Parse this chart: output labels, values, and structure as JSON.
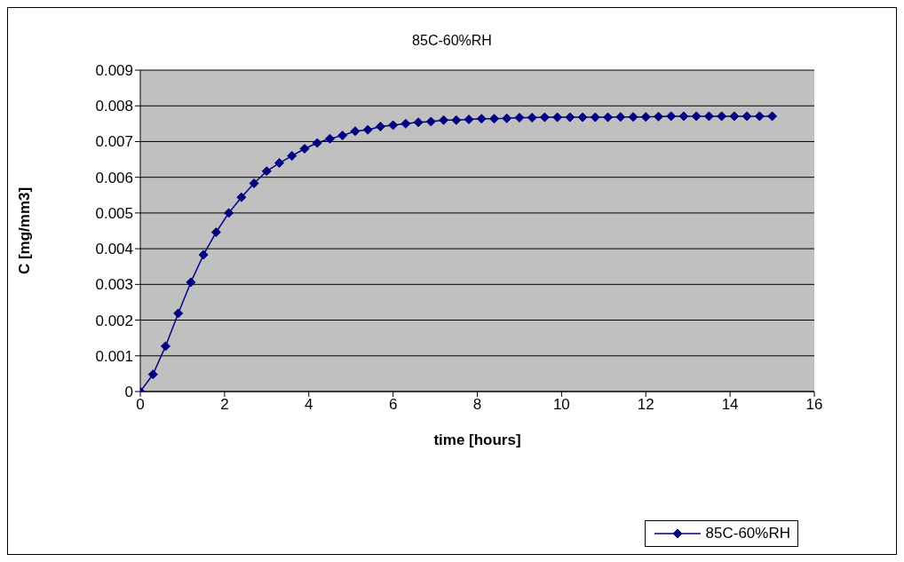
{
  "chart_data": {
    "type": "line",
    "title": "85C-60%RH",
    "xlabel": "time [hours]",
    "ylabel": "C [mg/mm3]",
    "x": [
      0,
      0.3,
      0.6,
      0.9,
      1.2,
      1.5,
      1.8,
      2.1,
      2.4,
      2.7,
      3,
      3.3,
      3.6,
      3.9,
      4.2,
      4.5,
      4.8,
      5.1,
      5.4,
      5.7,
      6,
      6.3,
      6.6,
      6.9,
      7.2,
      7.5,
      7.8,
      8.1,
      8.4,
      8.7,
      9,
      9.3,
      9.6,
      9.9,
      10.2,
      10.5,
      10.8,
      11.1,
      11.4,
      11.7,
      12,
      12.3,
      12.6,
      12.9,
      13.2,
      13.5,
      13.8,
      14.1,
      14.4,
      14.7,
      15
    ],
    "series": [
      {
        "name": "85C-60%RH",
        "color": "#000080",
        "values": [
          0,
          0.00048,
          0.00127,
          0.00219,
          0.00306,
          0.00383,
          0.00446,
          0.005,
          0.00544,
          0.00583,
          0.00617,
          0.0064,
          0.0066,
          0.0068,
          0.00696,
          0.00708,
          0.00717,
          0.00729,
          0.00733,
          0.00742,
          0.00746,
          0.0075,
          0.00754,
          0.00756,
          0.0076,
          0.0076,
          0.00762,
          0.00764,
          0.00764,
          0.00765,
          0.00767,
          0.00767,
          0.00768,
          0.00768,
          0.00768,
          0.00768,
          0.00768,
          0.00768,
          0.00769,
          0.00769,
          0.00769,
          0.0077,
          0.00771,
          0.00771,
          0.00771,
          0.00771,
          0.00771,
          0.00771,
          0.00771,
          0.00771,
          0.00771
        ]
      }
    ],
    "xlim": [
      0,
      16
    ],
    "xticks": [
      0,
      2,
      4,
      6,
      8,
      10,
      12,
      14,
      16
    ],
    "ylim": [
      0,
      0.009
    ],
    "yticks": [
      0,
      0.001,
      0.002,
      0.003,
      0.004,
      0.005,
      0.006,
      0.007,
      0.008,
      0.009
    ],
    "grid": "y",
    "legend": "bottom right",
    "marker": "diamond",
    "line_style": "solid"
  }
}
